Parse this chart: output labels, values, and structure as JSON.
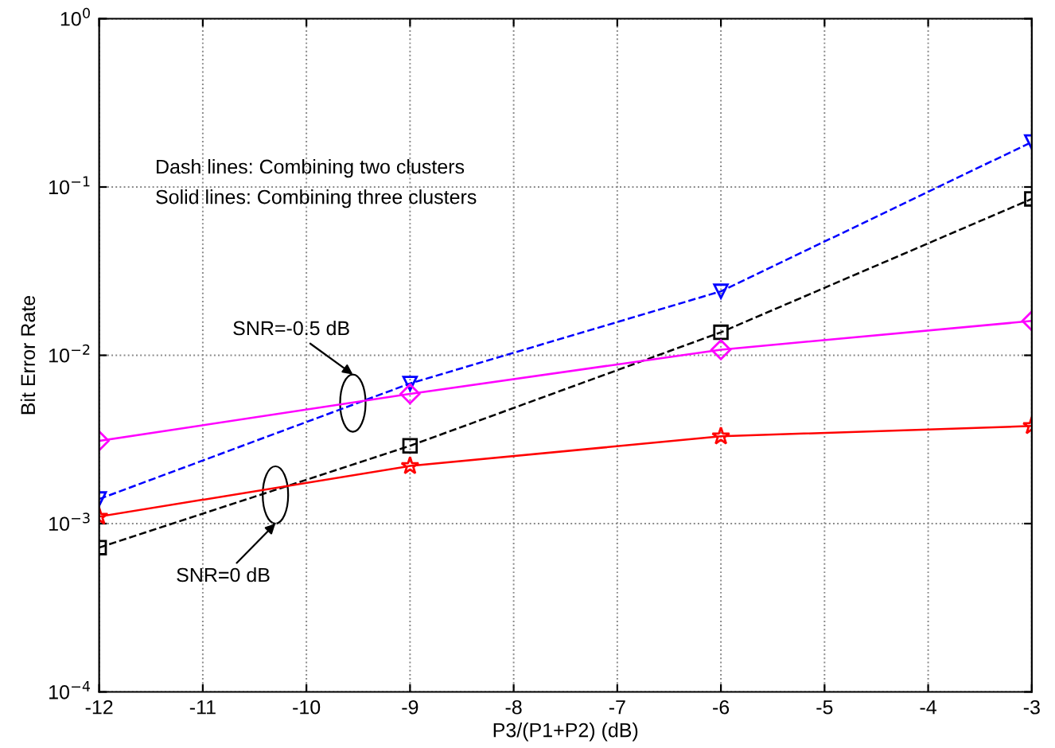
{
  "chart_data": {
    "type": "line",
    "xlabel": "P3/(P1+P2) (dB)",
    "ylabel": "Bit Error Rate",
    "x": [
      -12,
      -9,
      -6,
      -3
    ],
    "series": [
      {
        "color": "#0000ff",
        "values": [
          0.0014,
          0.0068,
          0.024,
          0.185
        ],
        "marker": "triangle",
        "line_style": "dashed"
      },
      {
        "color": "#000000",
        "values": [
          0.00072,
          0.0029,
          0.0137,
          0.085
        ],
        "marker": "square",
        "line_style": "dashed"
      },
      {
        "color": "#ff00ff",
        "values": [
          0.0031,
          0.0059,
          0.0108,
          0.016
        ],
        "marker": "diamond",
        "line_style": "solid"
      },
      {
        "color": "#ff0000",
        "values": [
          0.0011,
          0.0022,
          0.0033,
          0.0038
        ],
        "marker": "star",
        "line_style": "solid"
      }
    ],
    "log": "y",
    "xlim": [
      -12,
      -3
    ],
    "ylim": [
      0.0001,
      1
    ],
    "xticks": [
      -12,
      -11,
      -10,
      -9,
      -8,
      -7,
      -6,
      -5,
      -4,
      -3
    ],
    "yticks": [
      {
        "value": 0.0001,
        "label": "10$^{−4}$"
      },
      {
        "value": 0.001,
        "label": "10$^{−3}$"
      },
      {
        "value": 0.01,
        "label": "10$^{−2}$"
      },
      {
        "value": 0.1,
        "label": "10$^{−1}$"
      },
      {
        "value": 1,
        "label": "10$^{0}$"
      }
    ],
    "grid": true,
    "annotations": [
      "Dash lines: Combining two clusters",
      "Solid lines: Combining three clusters",
      "SNR=-0.5 dB",
      "SNR=0 dB"
    ]
  }
}
